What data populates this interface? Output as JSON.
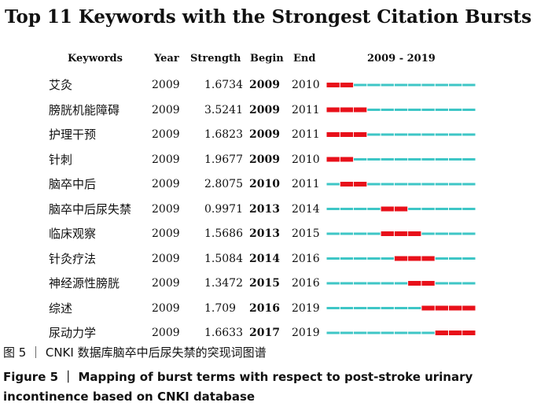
{
  "chart_data": {
    "type": "table",
    "title": "Top 11 Keywords with the Strongest Citation Bursts",
    "columns": [
      "Keywords",
      "Year",
      "Strength",
      "Begin",
      "End",
      "2009 - 2019"
    ],
    "range": [
      2009,
      2019
    ],
    "rows": [
      {
        "keyword": "艾灸",
        "year": "2009",
        "strength": "1.6734",
        "begin": "2009",
        "end": "2010"
      },
      {
        "keyword": "膀胱机能障碍",
        "year": "2009",
        "strength": "3.5241",
        "begin": "2009",
        "end": "2011"
      },
      {
        "keyword": "护理干预",
        "year": "2009",
        "strength": "1.6823",
        "begin": "2009",
        "end": "2011"
      },
      {
        "keyword": "针刺",
        "year": "2009",
        "strength": "1.9677",
        "begin": "2009",
        "end": "2010"
      },
      {
        "keyword": "脑卒中后",
        "year": "2009",
        "strength": "2.8075",
        "begin": "2010",
        "end": "2011"
      },
      {
        "keyword": "脑卒中后尿失禁",
        "year": "2009",
        "strength": "0.9971",
        "begin": "2013",
        "end": "2014"
      },
      {
        "keyword": "临床观察",
        "year": "2009",
        "strength": "1.5686",
        "begin": "2013",
        "end": "2015"
      },
      {
        "keyword": "针灸疗法",
        "year": "2009",
        "strength": "1.5084",
        "begin": "2014",
        "end": "2016"
      },
      {
        "keyword": "神经源性膀胱",
        "year": "2009",
        "strength": "1.3472",
        "begin": "2015",
        "end": "2016"
      },
      {
        "keyword": "综述",
        "year": "2009",
        "strength": "1.709",
        "begin": "2016",
        "end": "2019"
      },
      {
        "keyword": "尿动力学",
        "year": "2009",
        "strength": "1.6633",
        "begin": "2017",
        "end": "2019"
      }
    ],
    "colors": {
      "burst": "#e8101a",
      "baseline": "#3ec6c6"
    }
  },
  "caption": {
    "cn": "图 5 ｜ CNKI 数据库脑卒中后尿失禁的突现词图谱",
    "en_line1": "Figure 5 ｜ Mapping of burst terms with respect to post-stroke urinary",
    "en_line2": "incontinence based on CNKI database"
  }
}
